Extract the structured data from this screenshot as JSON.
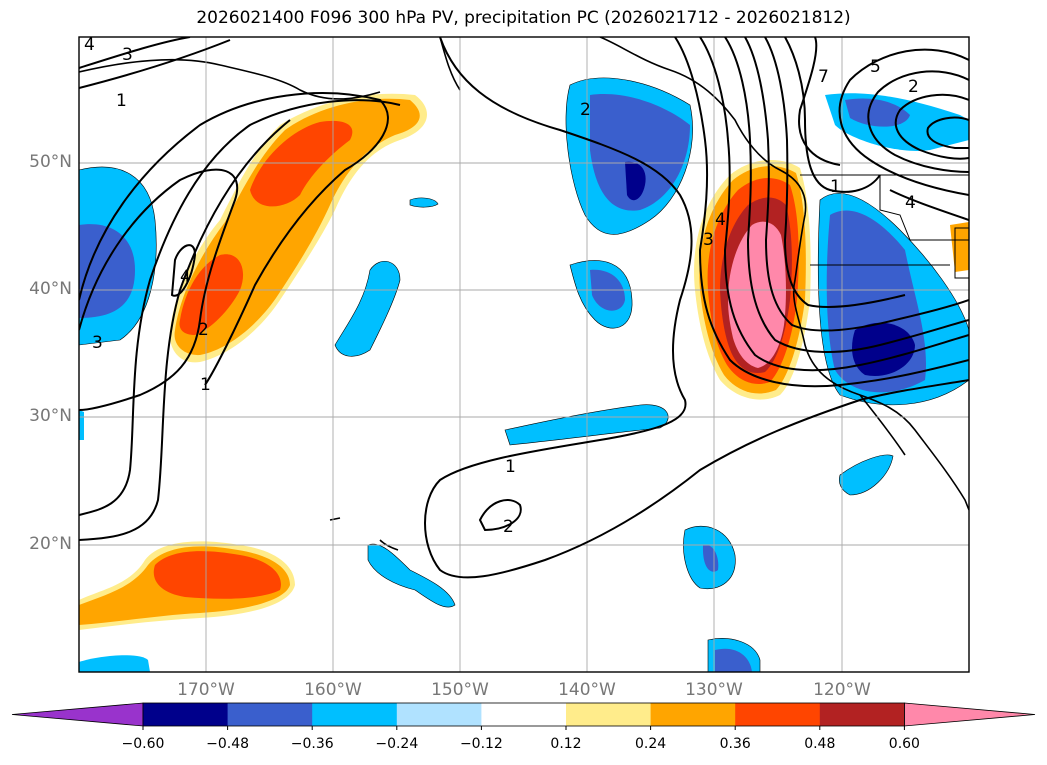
{
  "title": "2026021400 F096 300 hPa PV, precipitation PC (2026021712 - 2026021812)",
  "map": {
    "lon_range": [
      -180,
      -110
    ],
    "lat_range": [
      10,
      60
    ],
    "lat_labels": [
      "50°N",
      "40°N",
      "30°N",
      "20°N"
    ],
    "lon_labels": [
      "170°W",
      "160°W",
      "150°W",
      "140°W",
      "130°W",
      "120°W"
    ],
    "contour_labels": [
      "4",
      "3",
      "1",
      "4",
      "2",
      "3",
      "1",
      "2",
      "1",
      "2",
      "4",
      "3",
      "7",
      "5",
      "2",
      "4",
      "1"
    ]
  },
  "colorbar": {
    "ticks": [
      "−0.60",
      "−0.48",
      "−0.36",
      "−0.24",
      "−0.12",
      "0.12",
      "0.24",
      "0.36",
      "0.48",
      "0.60"
    ],
    "colors": [
      "#9933cc",
      "#00008b",
      "#3a5fcd",
      "#00bfff",
      "#b0e2ff",
      "#ffffff",
      "#ffec8b",
      "#ffa500",
      "#ff4500",
      "#b22222",
      "#ff88aa"
    ]
  }
}
